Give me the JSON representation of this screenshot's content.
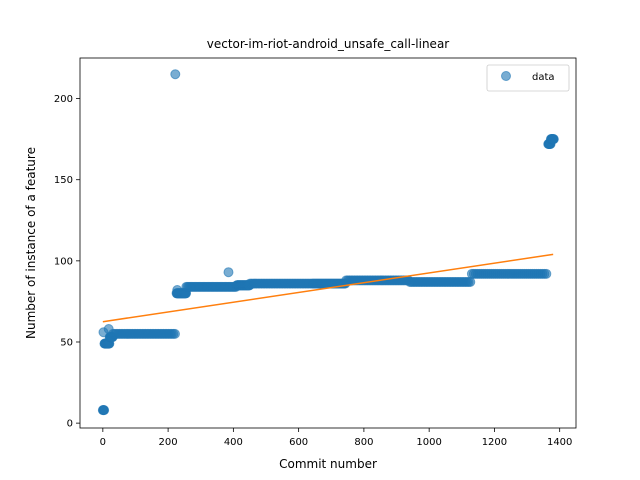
{
  "chart_data": {
    "type": "scatter",
    "title": "vector-im-riot-android_unsafe_call-linear",
    "xlabel": "Commit number",
    "ylabel": "Number of instance of a feature",
    "xlim": [
      -70,
      1450
    ],
    "ylim": [
      -3,
      225
    ],
    "xticks": [
      0,
      200,
      400,
      600,
      800,
      1000,
      1200,
      1400
    ],
    "yticks": [
      0,
      50,
      100,
      150,
      200
    ],
    "legend": {
      "position": "top-right",
      "entries": [
        "data"
      ]
    },
    "colors": {
      "data": "#1f77b4",
      "fit": "#ff7f0e"
    },
    "series": [
      {
        "name": "data",
        "segments": [
          {
            "x_start": 0,
            "x_end": 4,
            "y": 8
          },
          {
            "x_start": 5,
            "x_end": 20,
            "y": 49
          },
          {
            "x_start": 21,
            "x_end": 30,
            "y": 53
          },
          {
            "x_start": 31,
            "x_end": 225,
            "y": 55
          },
          {
            "x_start": 226,
            "x_end": 255,
            "y": 80
          },
          {
            "x_start": 256,
            "x_end": 410,
            "y": 84
          },
          {
            "x_start": 411,
            "x_end": 450,
            "y": 85
          },
          {
            "x_start": 451,
            "x_end": 640,
            "y": 86
          },
          {
            "x_start": 641,
            "x_end": 745,
            "y": 86
          },
          {
            "x_start": 746,
            "x_end": 940,
            "y": 88
          },
          {
            "x_start": 941,
            "x_end": 1130,
            "y": 87
          },
          {
            "x_start": 1131,
            "x_end": 1360,
            "y": 92
          },
          {
            "x_start": 1365,
            "x_end": 1372,
            "y": 172
          },
          {
            "x_start": 1373,
            "x_end": 1382,
            "y": 175
          }
        ],
        "points": [
          {
            "x": 2,
            "y": 56
          },
          {
            "x": 18,
            "y": 58
          },
          {
            "x": 222,
            "y": 215
          },
          {
            "x": 228,
            "y": 82
          },
          {
            "x": 385,
            "y": 93
          }
        ]
      },
      {
        "name": "linear-fit",
        "x": [
          0,
          1380
        ],
        "y": [
          62.5,
          104
        ]
      }
    ]
  }
}
